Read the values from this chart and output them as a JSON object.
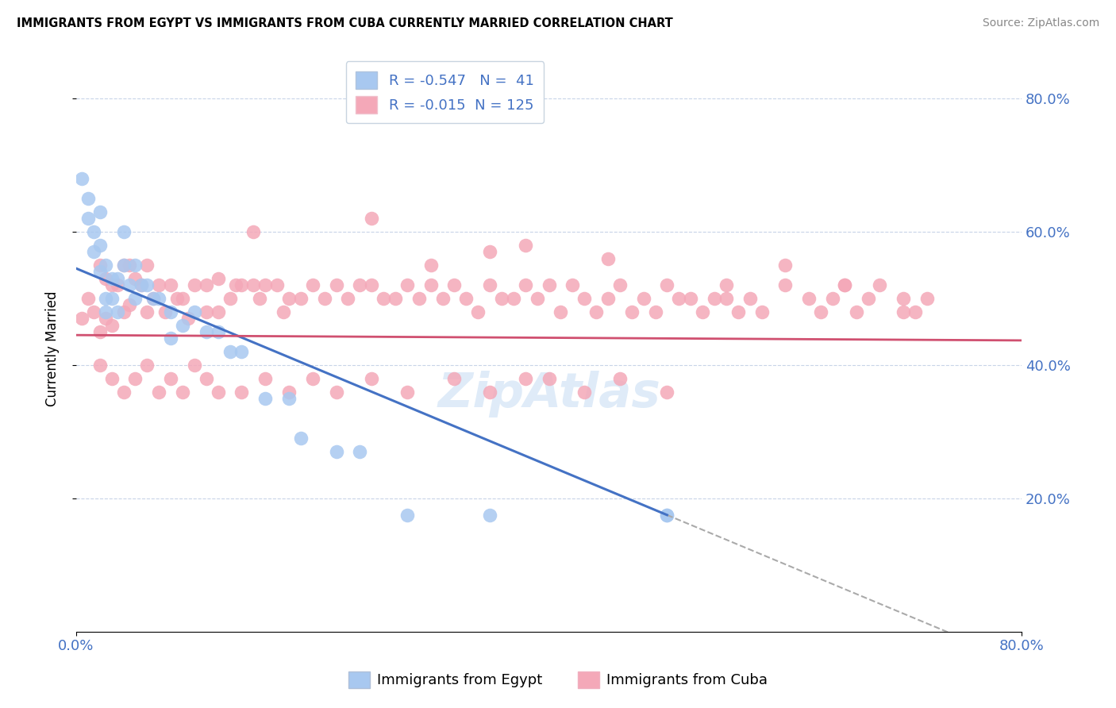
{
  "title": "IMMIGRANTS FROM EGYPT VS IMMIGRANTS FROM CUBA CURRENTLY MARRIED CORRELATION CHART",
  "source": "Source: ZipAtlas.com",
  "ylabel": "Currently Married",
  "xlim": [
    0.0,
    0.8
  ],
  "ylim": [
    0.0,
    0.85
  ],
  "egypt_R": -0.547,
  "egypt_N": 41,
  "cuba_R": -0.015,
  "cuba_N": 125,
  "egypt_color": "#a8c8f0",
  "cuba_color": "#f4a8b8",
  "egypt_line_color": "#4472c4",
  "cuba_line_color": "#d05070",
  "egypt_line_x0": 0.0,
  "egypt_line_y0": 0.545,
  "egypt_line_x1": 0.5,
  "egypt_line_y1": 0.175,
  "egypt_line_solid_end": 0.5,
  "egypt_line_dash_end": 0.8,
  "cuba_line_y": 0.445,
  "egypt_scatter_x": [
    0.005,
    0.01,
    0.01,
    0.015,
    0.015,
    0.02,
    0.02,
    0.02,
    0.025,
    0.025,
    0.025,
    0.03,
    0.03,
    0.035,
    0.035,
    0.04,
    0.04,
    0.045,
    0.05,
    0.05,
    0.055,
    0.06,
    0.065,
    0.07,
    0.08,
    0.08,
    0.09,
    0.1,
    0.11,
    0.12,
    0.13,
    0.14,
    0.16,
    0.18,
    0.19,
    0.22,
    0.24,
    0.28,
    0.35,
    0.5,
    0.5
  ],
  "egypt_scatter_y": [
    0.68,
    0.62,
    0.65,
    0.6,
    0.57,
    0.63,
    0.58,
    0.54,
    0.55,
    0.5,
    0.48,
    0.53,
    0.5,
    0.53,
    0.48,
    0.6,
    0.55,
    0.52,
    0.55,
    0.5,
    0.52,
    0.52,
    0.5,
    0.5,
    0.48,
    0.44,
    0.46,
    0.48,
    0.45,
    0.45,
    0.42,
    0.42,
    0.35,
    0.35,
    0.29,
    0.27,
    0.27,
    0.175,
    0.175,
    0.175,
    0.175
  ],
  "cuba_scatter_x": [
    0.005,
    0.01,
    0.015,
    0.02,
    0.02,
    0.025,
    0.025,
    0.03,
    0.03,
    0.035,
    0.04,
    0.04,
    0.045,
    0.045,
    0.05,
    0.055,
    0.06,
    0.06,
    0.065,
    0.07,
    0.075,
    0.08,
    0.085,
    0.09,
    0.095,
    0.1,
    0.11,
    0.11,
    0.12,
    0.12,
    0.13,
    0.135,
    0.14,
    0.15,
    0.155,
    0.16,
    0.17,
    0.175,
    0.18,
    0.19,
    0.2,
    0.21,
    0.22,
    0.23,
    0.24,
    0.25,
    0.26,
    0.27,
    0.28,
    0.29,
    0.3,
    0.31,
    0.32,
    0.33,
    0.34,
    0.35,
    0.36,
    0.37,
    0.38,
    0.39,
    0.4,
    0.41,
    0.42,
    0.43,
    0.44,
    0.45,
    0.46,
    0.47,
    0.48,
    0.49,
    0.5,
    0.51,
    0.52,
    0.53,
    0.54,
    0.55,
    0.56,
    0.57,
    0.58,
    0.6,
    0.62,
    0.63,
    0.64,
    0.65,
    0.66,
    0.67,
    0.68,
    0.7,
    0.71,
    0.72,
    0.02,
    0.03,
    0.04,
    0.05,
    0.06,
    0.07,
    0.08,
    0.09,
    0.1,
    0.11,
    0.12,
    0.14,
    0.16,
    0.18,
    0.2,
    0.22,
    0.25,
    0.28,
    0.32,
    0.35,
    0.38,
    0.4,
    0.43,
    0.46,
    0.5,
    0.55,
    0.6,
    0.65,
    0.7,
    0.3,
    0.35,
    0.15,
    0.25,
    0.38,
    0.45
  ],
  "cuba_scatter_y": [
    0.47,
    0.5,
    0.48,
    0.55,
    0.45,
    0.53,
    0.47,
    0.52,
    0.46,
    0.52,
    0.55,
    0.48,
    0.55,
    0.49,
    0.53,
    0.52,
    0.55,
    0.48,
    0.5,
    0.52,
    0.48,
    0.52,
    0.5,
    0.5,
    0.47,
    0.52,
    0.52,
    0.48,
    0.53,
    0.48,
    0.5,
    0.52,
    0.52,
    0.52,
    0.5,
    0.52,
    0.52,
    0.48,
    0.5,
    0.5,
    0.52,
    0.5,
    0.52,
    0.5,
    0.52,
    0.52,
    0.5,
    0.5,
    0.52,
    0.5,
    0.52,
    0.5,
    0.52,
    0.5,
    0.48,
    0.52,
    0.5,
    0.5,
    0.52,
    0.5,
    0.52,
    0.48,
    0.52,
    0.5,
    0.48,
    0.5,
    0.52,
    0.48,
    0.5,
    0.48,
    0.52,
    0.5,
    0.5,
    0.48,
    0.5,
    0.52,
    0.48,
    0.5,
    0.48,
    0.52,
    0.5,
    0.48,
    0.5,
    0.52,
    0.48,
    0.5,
    0.52,
    0.5,
    0.48,
    0.5,
    0.4,
    0.38,
    0.36,
    0.38,
    0.4,
    0.36,
    0.38,
    0.36,
    0.4,
    0.38,
    0.36,
    0.36,
    0.38,
    0.36,
    0.38,
    0.36,
    0.38,
    0.36,
    0.38,
    0.36,
    0.38,
    0.38,
    0.36,
    0.38,
    0.36,
    0.5,
    0.55,
    0.52,
    0.48,
    0.55,
    0.57,
    0.6,
    0.62,
    0.58,
    0.56
  ]
}
